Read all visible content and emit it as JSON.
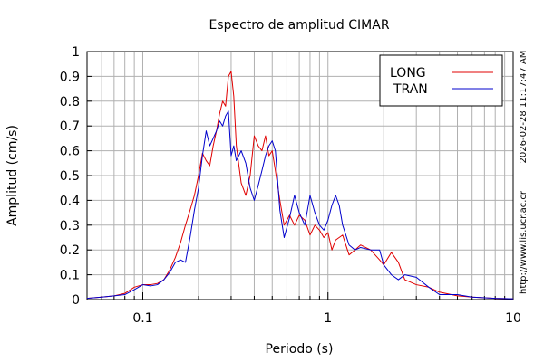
{
  "chart_data": {
    "type": "line",
    "title": "Espectro de amplitud CIMAR",
    "xlabel": "Periodo (s)",
    "ylabel": "Amplitud (cm/s)",
    "xscale": "log",
    "xlim": [
      0.05,
      10
    ],
    "ylim": [
      0,
      1
    ],
    "grid": true,
    "legend_position": "top-right",
    "x_tick_labels": [
      "0.1",
      "1",
      "10"
    ],
    "y_tick_labels": [
      "0",
      "0.1",
      "0.2",
      "0.3",
      "0.4",
      "0.5",
      "0.6",
      "0.7",
      "0.8",
      "0.9",
      "1"
    ],
    "side_text_timestamp": "2026-02-28 11:17:47 AM",
    "side_text_url": "http://www.lis.ucr.ac.cr",
    "series": [
      {
        "name": "LONG",
        "color": "#e00000",
        "points": [
          [
            0.05,
            0.005
          ],
          [
            0.06,
            0.01
          ],
          [
            0.07,
            0.015
          ],
          [
            0.08,
            0.025
          ],
          [
            0.09,
            0.05
          ],
          [
            0.1,
            0.06
          ],
          [
            0.11,
            0.06
          ],
          [
            0.12,
            0.065
          ],
          [
            0.13,
            0.08
          ],
          [
            0.14,
            0.12
          ],
          [
            0.15,
            0.17
          ],
          [
            0.16,
            0.23
          ],
          [
            0.17,
            0.3
          ],
          [
            0.18,
            0.36
          ],
          [
            0.19,
            0.42
          ],
          [
            0.2,
            0.5
          ],
          [
            0.21,
            0.59
          ],
          [
            0.22,
            0.56
          ],
          [
            0.23,
            0.54
          ],
          [
            0.24,
            0.62
          ],
          [
            0.25,
            0.68
          ],
          [
            0.26,
            0.75
          ],
          [
            0.27,
            0.8
          ],
          [
            0.28,
            0.78
          ],
          [
            0.29,
            0.9
          ],
          [
            0.3,
            0.92
          ],
          [
            0.31,
            0.82
          ],
          [
            0.32,
            0.62
          ],
          [
            0.34,
            0.47
          ],
          [
            0.36,
            0.42
          ],
          [
            0.38,
            0.5
          ],
          [
            0.4,
            0.66
          ],
          [
            0.42,
            0.62
          ],
          [
            0.44,
            0.6
          ],
          [
            0.46,
            0.66
          ],
          [
            0.48,
            0.58
          ],
          [
            0.5,
            0.6
          ],
          [
            0.52,
            0.52
          ],
          [
            0.55,
            0.4
          ],
          [
            0.58,
            0.3
          ],
          [
            0.62,
            0.34
          ],
          [
            0.66,
            0.3
          ],
          [
            0.7,
            0.34
          ],
          [
            0.75,
            0.32
          ],
          [
            0.8,
            0.26
          ],
          [
            0.85,
            0.3
          ],
          [
            0.9,
            0.28
          ],
          [
            0.95,
            0.25
          ],
          [
            1.0,
            0.27
          ],
          [
            1.05,
            0.2
          ],
          [
            1.1,
            0.24
          ],
          [
            1.2,
            0.26
          ],
          [
            1.3,
            0.18
          ],
          [
            1.4,
            0.2
          ],
          [
            1.5,
            0.22
          ],
          [
            1.7,
            0.2
          ],
          [
            1.9,
            0.16
          ],
          [
            2.0,
            0.14
          ],
          [
            2.2,
            0.19
          ],
          [
            2.4,
            0.15
          ],
          [
            2.6,
            0.08
          ],
          [
            3.0,
            0.06
          ],
          [
            3.5,
            0.05
          ],
          [
            4.0,
            0.03
          ],
          [
            5.0,
            0.015
          ],
          [
            6.0,
            0.01
          ],
          [
            8.0,
            0.005
          ],
          [
            10.0,
            0.003
          ]
        ]
      },
      {
        "name": "TRAN",
        "color": "#0000cc",
        "points": [
          [
            0.05,
            0.005
          ],
          [
            0.06,
            0.01
          ],
          [
            0.07,
            0.015
          ],
          [
            0.08,
            0.02
          ],
          [
            0.09,
            0.04
          ],
          [
            0.1,
            0.06
          ],
          [
            0.11,
            0.055
          ],
          [
            0.12,
            0.06
          ],
          [
            0.13,
            0.08
          ],
          [
            0.14,
            0.11
          ],
          [
            0.15,
            0.15
          ],
          [
            0.16,
            0.16
          ],
          [
            0.17,
            0.15
          ],
          [
            0.18,
            0.25
          ],
          [
            0.19,
            0.36
          ],
          [
            0.2,
            0.45
          ],
          [
            0.21,
            0.58
          ],
          [
            0.22,
            0.68
          ],
          [
            0.23,
            0.62
          ],
          [
            0.24,
            0.65
          ],
          [
            0.25,
            0.68
          ],
          [
            0.26,
            0.72
          ],
          [
            0.27,
            0.7
          ],
          [
            0.28,
            0.74
          ],
          [
            0.29,
            0.76
          ],
          [
            0.3,
            0.58
          ],
          [
            0.31,
            0.62
          ],
          [
            0.32,
            0.56
          ],
          [
            0.34,
            0.6
          ],
          [
            0.36,
            0.55
          ],
          [
            0.38,
            0.45
          ],
          [
            0.4,
            0.4
          ],
          [
            0.42,
            0.46
          ],
          [
            0.44,
            0.52
          ],
          [
            0.46,
            0.58
          ],
          [
            0.48,
            0.62
          ],
          [
            0.5,
            0.64
          ],
          [
            0.52,
            0.6
          ],
          [
            0.55,
            0.36
          ],
          [
            0.58,
            0.25
          ],
          [
            0.62,
            0.33
          ],
          [
            0.66,
            0.42
          ],
          [
            0.7,
            0.35
          ],
          [
            0.75,
            0.3
          ],
          [
            0.8,
            0.42
          ],
          [
            0.85,
            0.35
          ],
          [
            0.9,
            0.3
          ],
          [
            0.95,
            0.28
          ],
          [
            1.0,
            0.32
          ],
          [
            1.05,
            0.38
          ],
          [
            1.1,
            0.42
          ],
          [
            1.15,
            0.38
          ],
          [
            1.2,
            0.3
          ],
          [
            1.3,
            0.22
          ],
          [
            1.4,
            0.2
          ],
          [
            1.5,
            0.21
          ],
          [
            1.7,
            0.2
          ],
          [
            1.9,
            0.2
          ],
          [
            2.0,
            0.14
          ],
          [
            2.2,
            0.1
          ],
          [
            2.4,
            0.08
          ],
          [
            2.6,
            0.1
          ],
          [
            3.0,
            0.09
          ],
          [
            3.5,
            0.05
          ],
          [
            4.0,
            0.02
          ],
          [
            5.0,
            0.02
          ],
          [
            6.0,
            0.01
          ],
          [
            8.0,
            0.005
          ],
          [
            10.0,
            0.003
          ]
        ]
      }
    ]
  }
}
